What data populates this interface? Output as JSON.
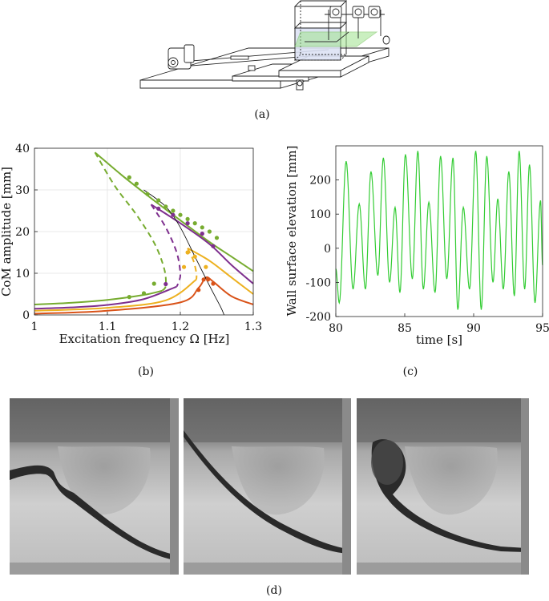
{
  "panels": {
    "a": {
      "caption": "(a)"
    },
    "b": {
      "caption": "(b)"
    },
    "c": {
      "caption": "(c)"
    },
    "d": {
      "caption": "(d)"
    }
  },
  "colors": {
    "green": "#77ac30",
    "purple": "#7e2f8e",
    "yellow": "#edb120",
    "orange": "#d95319",
    "signal": "#33cc33"
  },
  "chart_data": [
    {
      "type": "line",
      "panel": "b",
      "xlabel": "Excitation frequency Ω [Hz]",
      "ylabel": "CoM amplitude [mm]",
      "xlim": [
        1,
        1.3
      ],
      "ylim": [
        0,
        40
      ],
      "xticks": [
        "1",
        "1.1",
        "1.2",
        "1.3"
      ],
      "yticks": [
        "0",
        "10",
        "20",
        "30",
        "40"
      ],
      "grid": true,
      "series": [
        {
          "color": "green",
          "curve_stable_upper": [
            [
              1.083,
              39
            ],
            [
              1.12,
              33.5
            ],
            [
              1.16,
              28
            ],
            [
              1.2,
              22.7
            ],
            [
              1.24,
              17.5
            ],
            [
              1.27,
              14
            ],
            [
              1.3,
              10.5
            ]
          ],
          "curve_unstable": [
            [
              1.083,
              39
            ],
            [
              1.11,
              31
            ],
            [
              1.14,
              24
            ],
            [
              1.165,
              17
            ],
            [
              1.178,
              11
            ],
            [
              1.18,
              7
            ],
            [
              1.175,
              5.8
            ]
          ],
          "curve_stable_lower": [
            [
              1,
              2.5
            ],
            [
              1.05,
              2.9
            ],
            [
              1.1,
              3.6
            ],
            [
              1.15,
              4.8
            ],
            [
              1.175,
              5.8
            ]
          ],
          "points": [
            [
              1.13,
              4.3
            ],
            [
              1.15,
              5.2
            ],
            [
              1.164,
              7.5
            ],
            [
              1.13,
              33
            ],
            [
              1.14,
              31.5
            ],
            [
              1.155,
              29
            ],
            [
              1.17,
              27.5
            ],
            [
              1.18,
              26
            ],
            [
              1.19,
              25
            ],
            [
              1.2,
              24
            ],
            [
              1.21,
              23
            ],
            [
              1.22,
              22
            ],
            [
              1.23,
              21
            ],
            [
              1.24,
              20
            ],
            [
              1.25,
              18.5
            ]
          ]
        },
        {
          "color": "purple",
          "curve_stable_upper": [
            [
              1.16,
              26.5
            ],
            [
              1.2,
              22
            ],
            [
              1.24,
              17
            ],
            [
              1.27,
              12
            ],
            [
              1.3,
              7.5
            ]
          ],
          "curve_unstable": [
            [
              1.16,
              26.5
            ],
            [
              1.18,
              21
            ],
            [
              1.195,
              15
            ],
            [
              1.2,
              10
            ],
            [
              1.198,
              8
            ],
            [
              1.195,
              6.8
            ]
          ],
          "curve_stable_lower": [
            [
              1,
              1.5
            ],
            [
              1.05,
              1.8
            ],
            [
              1.1,
              2.4
            ],
            [
              1.15,
              3.8
            ],
            [
              1.195,
              6.8
            ]
          ],
          "points": [
            [
              1.18,
              7.4
            ],
            [
              1.17,
              25.5
            ],
            [
              1.19,
              24
            ],
            [
              1.21,
              22
            ],
            [
              1.23,
              19.5
            ],
            [
              1.245,
              16.5
            ]
          ]
        },
        {
          "color": "yellow",
          "curve_stable_upper": [
            [
              1.21,
              16
            ],
            [
              1.24,
              13
            ],
            [
              1.27,
              9
            ],
            [
              1.3,
              5
            ]
          ],
          "curve_unstable": [
            [
              1.21,
              16
            ],
            [
              1.218,
              13
            ],
            [
              1.222,
              10
            ],
            [
              1.222,
              8.5
            ]
          ],
          "curve_stable_lower": [
            [
              1,
              1
            ],
            [
              1.1,
              1.7
            ],
            [
              1.18,
              3.5
            ],
            [
              1.222,
              8.5
            ]
          ],
          "points": [
            [
              1.205,
              11.5
            ],
            [
              1.21,
              15
            ],
            [
              1.22,
              14
            ],
            [
              1.235,
              11.5
            ]
          ]
        },
        {
          "color": "orange",
          "curve_stable": [
            [
              1,
              0.3
            ],
            [
              1.1,
              1
            ],
            [
              1.2,
              3
            ],
            [
              1.225,
              6.5
            ],
            [
              1.235,
              9
            ],
            [
              1.245,
              8
            ],
            [
              1.27,
              4.5
            ],
            [
              1.3,
              2.5
            ]
          ],
          "points": [
            [
              1.225,
              6
            ],
            [
              1.232,
              8.5
            ],
            [
              1.238,
              8.5
            ],
            [
              1.245,
              7.5
            ]
          ]
        },
        {
          "color": "black",
          "curve_backbone": [
            [
              1.15,
              30
            ],
            [
              1.18,
              26
            ],
            [
              1.2,
              21
            ],
            [
              1.22,
              14
            ],
            [
              1.24,
              7
            ],
            [
              1.255,
              2
            ],
            [
              1.26,
              0
            ]
          ]
        }
      ]
    },
    {
      "type": "line",
      "panel": "c",
      "xlabel": "time [s]",
      "ylabel": "Wall surface elevation [mm]",
      "xlim": [
        80,
        95
      ],
      "ylim": [
        -200,
        300
      ],
      "xticks": [
        "80",
        "85",
        "90",
        "95"
      ],
      "yticks": [
        "-200",
        "-100",
        "0",
        "100",
        "200"
      ],
      "grid": false,
      "series": [
        {
          "color": "signal",
          "peaks": [
            [
              80.75,
              255
            ],
            [
              81.7,
              130
            ],
            [
              82.55,
              225
            ],
            [
              83.45,
              265
            ],
            [
              84.3,
              120
            ],
            [
              85.05,
              275
            ],
            [
              85.95,
              285
            ],
            [
              86.75,
              135
            ],
            [
              87.6,
              270
            ],
            [
              88.5,
              265
            ],
            [
              89.25,
              120
            ],
            [
              90.15,
              285
            ],
            [
              90.95,
              270
            ],
            [
              91.75,
              145
            ],
            [
              92.55,
              225
            ],
            [
              93.3,
              285
            ],
            [
              94.05,
              245
            ],
            [
              94.85,
              140
            ]
          ],
          "troughs": [
            [
              80.25,
              -160
            ],
            [
              81.25,
              -120
            ],
            [
              82.15,
              -120
            ],
            [
              83.05,
              -80
            ],
            [
              83.9,
              -100
            ],
            [
              84.65,
              -130
            ],
            [
              85.55,
              -90
            ],
            [
              86.35,
              -120
            ],
            [
              87.2,
              -130
            ],
            [
              88.05,
              -90
            ],
            [
              88.85,
              -180
            ],
            [
              89.7,
              -120
            ],
            [
              90.55,
              -180
            ],
            [
              91.4,
              -100
            ],
            [
              92.15,
              -120
            ],
            [
              92.95,
              -140
            ],
            [
              93.7,
              -120
            ],
            [
              94.45,
              -160
            ]
          ]
        }
      ]
    }
  ]
}
